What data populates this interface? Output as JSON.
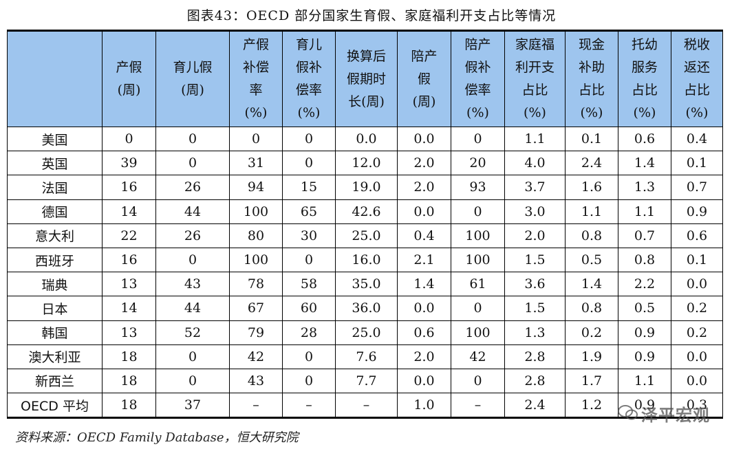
{
  "title": "图表43：OECD 部分国家生育假、家庭福利开支占比等情况",
  "headers": [
    [
      ""
    ],
    [
      "产假",
      "(周)"
    ],
    [
      "育儿假",
      "(周)"
    ],
    [
      "产假",
      "补偿",
      "率",
      "(%)"
    ],
    [
      "育儿",
      "假补",
      "偿率",
      "(%)"
    ],
    [
      "换算后",
      "假期时",
      "长(周)"
    ],
    [
      "陪产",
      "假",
      "(周)"
    ],
    [
      "陪产",
      "假补",
      "偿率",
      "(%)"
    ],
    [
      "家庭福",
      "利开支",
      "占比",
      "(%)"
    ],
    [
      "现金",
      "补助",
      "占比",
      "(%)"
    ],
    [
      "托幼",
      "服务",
      "占比",
      "(%)"
    ],
    [
      "税收",
      "返还",
      "占比",
      "(%)"
    ]
  ],
  "rows": [
    [
      "美国",
      "0",
      "0",
      "0",
      "0",
      "0.0",
      "0.0",
      "0",
      "1.1",
      "0.1",
      "0.6",
      "0.4"
    ],
    [
      "英国",
      "39",
      "0",
      "31",
      "0",
      "12.0",
      "2.0",
      "20",
      "4.0",
      "2.4",
      "1.4",
      "0.1"
    ],
    [
      "法国",
      "16",
      "26",
      "94",
      "15",
      "19.0",
      "2.0",
      "93",
      "3.7",
      "1.6",
      "1.3",
      "0.7"
    ],
    [
      "德国",
      "14",
      "44",
      "100",
      "65",
      "42.6",
      "0.0",
      "0",
      "3.0",
      "1.1",
      "1.1",
      "0.9"
    ],
    [
      "意大利",
      "22",
      "26",
      "80",
      "30",
      "25.0",
      "0.4",
      "100",
      "2.0",
      "0.8",
      "0.7",
      "0.6"
    ],
    [
      "西班牙",
      "16",
      "0",
      "100",
      "0",
      "16.0",
      "2.1",
      "100",
      "1.5",
      "0.5",
      "0.8",
      "0.1"
    ],
    [
      "瑞典",
      "13",
      "43",
      "78",
      "58",
      "35.0",
      "1.4",
      "61",
      "3.6",
      "1.4",
      "2.2",
      "0.0"
    ],
    [
      "日本",
      "14",
      "44",
      "67",
      "60",
      "36.0",
      "0.0",
      "0",
      "1.5",
      "0.8",
      "0.5",
      "0.2"
    ],
    [
      "韩国",
      "13",
      "52",
      "79",
      "28",
      "25.0",
      "0.6",
      "100",
      "1.3",
      "0.2",
      "0.9",
      "0.2"
    ],
    [
      "澳大利亚",
      "18",
      "0",
      "42",
      "0",
      "7.6",
      "2.0",
      "42",
      "2.8",
      "1.9",
      "0.9",
      "0.0"
    ],
    [
      "新西兰",
      "18",
      "0",
      "43",
      "0",
      "7.7",
      "0.0",
      "0",
      "2.8",
      "1.7",
      "1.1",
      "0.0"
    ],
    [
      "OECD 平均",
      "18",
      "37",
      "–",
      "–",
      "–",
      "1.0",
      "–",
      "2.4",
      "1.2",
      "0.9",
      "0.3"
    ]
  ],
  "source": "资料来源：OECD Family Database，恒大研究院",
  "watermark": "泽平宏观"
}
